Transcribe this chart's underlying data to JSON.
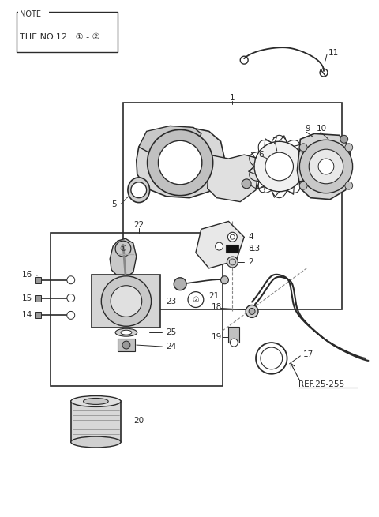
{
  "bg_color": "#ffffff",
  "line_color": "#2a2a2a",
  "gray_color": "#888888",
  "light_gray": "#cccccc",
  "mid_gray": "#aaaaaa",
  "note_text": "NOTE",
  "note_subtext": "THE NO.12 : ① - ②",
  "ref_text": "REF.25-255",
  "figsize": [
    4.8,
    6.55
  ],
  "dpi": 100
}
